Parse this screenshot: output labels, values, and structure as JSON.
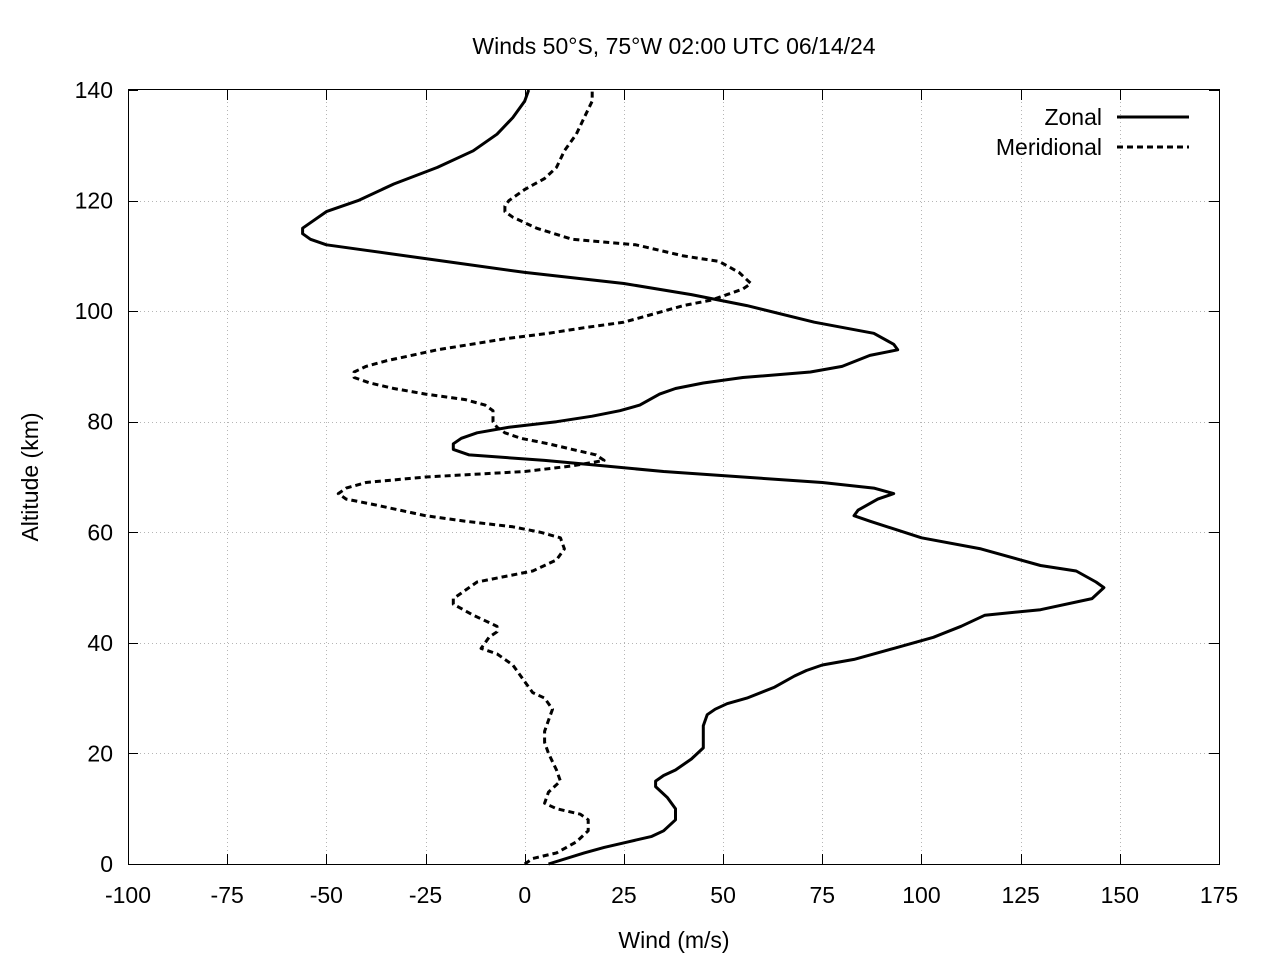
{
  "chart_data": {
    "type": "line",
    "title": "Winds 50°S, 75°W 02:00 UTC 06/14/24",
    "xlabel": "Wind (m/s)",
    "ylabel": "Altitude (km)",
    "xlim": [
      -100,
      175
    ],
    "ylim": [
      0,
      140
    ],
    "xticks": [
      -100,
      -75,
      -50,
      -25,
      0,
      25,
      50,
      75,
      100,
      125,
      150,
      175
    ],
    "yticks": [
      0,
      20,
      40,
      60,
      80,
      100,
      120,
      140
    ],
    "grid": true,
    "legend_position": "top-right",
    "series": [
      {
        "name": "Zonal",
        "style": "solid",
        "color": "#000000",
        "points": [
          [
            6,
            0
          ],
          [
            15,
            2
          ],
          [
            20,
            3
          ],
          [
            26,
            4
          ],
          [
            32,
            5
          ],
          [
            35,
            6
          ],
          [
            38,
            8
          ],
          [
            38,
            10
          ],
          [
            36,
            12
          ],
          [
            33,
            14
          ],
          [
            33,
            15
          ],
          [
            35,
            16
          ],
          [
            38,
            17
          ],
          [
            42,
            19
          ],
          [
            45,
            21
          ],
          [
            45,
            23
          ],
          [
            45,
            25
          ],
          [
            46,
            27
          ],
          [
            48,
            28
          ],
          [
            51,
            29
          ],
          [
            56,
            30
          ],
          [
            63,
            32
          ],
          [
            68,
            34
          ],
          [
            71,
            35
          ],
          [
            75,
            36
          ],
          [
            83,
            37
          ],
          [
            93,
            39
          ],
          [
            103,
            41
          ],
          [
            110,
            43
          ],
          [
            116,
            45
          ],
          [
            130,
            46
          ],
          [
            143,
            48
          ],
          [
            146,
            50
          ],
          [
            144,
            51
          ],
          [
            139,
            53
          ],
          [
            130,
            54
          ],
          [
            115,
            57
          ],
          [
            100,
            59
          ],
          [
            87,
            62
          ],
          [
            83,
            63
          ],
          [
            84,
            64
          ],
          [
            89,
            66
          ],
          [
            93,
            67
          ],
          [
            88,
            68
          ],
          [
            75,
            69
          ],
          [
            55,
            70
          ],
          [
            35,
            71
          ],
          [
            20,
            72
          ],
          [
            5,
            73
          ],
          [
            -14,
            74
          ],
          [
            -18,
            75
          ],
          [
            -18,
            76
          ],
          [
            -16,
            77
          ],
          [
            -12,
            78
          ],
          [
            -4,
            79
          ],
          [
            8,
            80
          ],
          [
            17,
            81
          ],
          [
            24,
            82
          ],
          [
            29,
            83
          ],
          [
            34,
            85
          ],
          [
            38,
            86
          ],
          [
            45,
            87
          ],
          [
            55,
            88
          ],
          [
            72,
            89
          ],
          [
            80,
            90
          ],
          [
            87,
            92
          ],
          [
            94,
            93
          ],
          [
            93,
            94
          ],
          [
            88,
            96
          ],
          [
            73,
            98
          ],
          [
            56,
            101
          ],
          [
            42,
            103
          ],
          [
            25,
            105
          ],
          [
            0,
            107
          ],
          [
            -20,
            109
          ],
          [
            -40,
            111
          ],
          [
            -50,
            112
          ],
          [
            -54,
            113
          ],
          [
            -56,
            114
          ],
          [
            -56,
            115
          ],
          [
            -54,
            116
          ],
          [
            -50,
            118
          ],
          [
            -42,
            120
          ],
          [
            -33,
            123
          ],
          [
            -22,
            126
          ],
          [
            -13,
            129
          ],
          [
            -7,
            132
          ],
          [
            -3,
            135
          ],
          [
            0,
            138
          ],
          [
            1,
            140
          ]
        ]
      },
      {
        "name": "Meridional",
        "style": "dashed",
        "color": "#000000",
        "points": [
          [
            0,
            0
          ],
          [
            2,
            1
          ],
          [
            8,
            2
          ],
          [
            13,
            4
          ],
          [
            16,
            6
          ],
          [
            16,
            8
          ],
          [
            14,
            9
          ],
          [
            8,
            10
          ],
          [
            5,
            11
          ],
          [
            6,
            13
          ],
          [
            9,
            15
          ],
          [
            8,
            17
          ],
          [
            6,
            20
          ],
          [
            5,
            22
          ],
          [
            5,
            24
          ],
          [
            6,
            26
          ],
          [
            7,
            28
          ],
          [
            5,
            30
          ],
          [
            2,
            31
          ],
          [
            0,
            33
          ],
          [
            -2,
            35
          ],
          [
            -3,
            36
          ],
          [
            -5,
            37
          ],
          [
            -7,
            38
          ],
          [
            -11,
            39
          ],
          [
            -10,
            40
          ],
          [
            -9,
            41
          ],
          [
            -7,
            42
          ],
          [
            -7,
            43
          ],
          [
            -10,
            44
          ],
          [
            -13,
            45
          ],
          [
            -18,
            47
          ],
          [
            -18,
            48
          ],
          [
            -16,
            49
          ],
          [
            -12,
            51
          ],
          [
            -5,
            52
          ],
          [
            2,
            53
          ],
          [
            8,
            55
          ],
          [
            10,
            57
          ],
          [
            9,
            59
          ],
          [
            4,
            60
          ],
          [
            -3,
            61
          ],
          [
            -15,
            62
          ],
          [
            -25,
            63
          ],
          [
            -38,
            65
          ],
          [
            -45,
            66
          ],
          [
            -47,
            67
          ],
          [
            -45,
            68
          ],
          [
            -40,
            69
          ],
          [
            -25,
            70
          ],
          [
            0,
            71
          ],
          [
            12,
            72
          ],
          [
            20,
            73
          ],
          [
            18,
            74
          ],
          [
            12,
            75
          ],
          [
            6,
            76
          ],
          [
            -1,
            77
          ],
          [
            -5,
            78
          ],
          [
            -7,
            79
          ],
          [
            -8,
            80
          ],
          [
            -8,
            81
          ],
          [
            -8,
            82
          ],
          [
            -10,
            83
          ],
          [
            -15,
            84
          ],
          [
            -25,
            85
          ],
          [
            -33,
            86
          ],
          [
            -39,
            87
          ],
          [
            -43,
            88
          ],
          [
            -43,
            89
          ],
          [
            -40,
            90
          ],
          [
            -35,
            91
          ],
          [
            -22,
            93
          ],
          [
            -5,
            95
          ],
          [
            6,
            96
          ],
          [
            15,
            97
          ],
          [
            25,
            98
          ],
          [
            30,
            99
          ],
          [
            40,
            101
          ],
          [
            47,
            102
          ],
          [
            51,
            103
          ],
          [
            55,
            104
          ],
          [
            57,
            105
          ],
          [
            54,
            107
          ],
          [
            49,
            109
          ],
          [
            40,
            110
          ],
          [
            28,
            112
          ],
          [
            12,
            113
          ],
          [
            3,
            115
          ],
          [
            -3,
            117
          ],
          [
            -5,
            118
          ],
          [
            -5,
            119
          ],
          [
            -4,
            120
          ],
          [
            0,
            122
          ],
          [
            5,
            124
          ],
          [
            8,
            126
          ],
          [
            10,
            129
          ],
          [
            13,
            132
          ],
          [
            15,
            135
          ],
          [
            17,
            138
          ],
          [
            17,
            140
          ]
        ]
      }
    ]
  }
}
